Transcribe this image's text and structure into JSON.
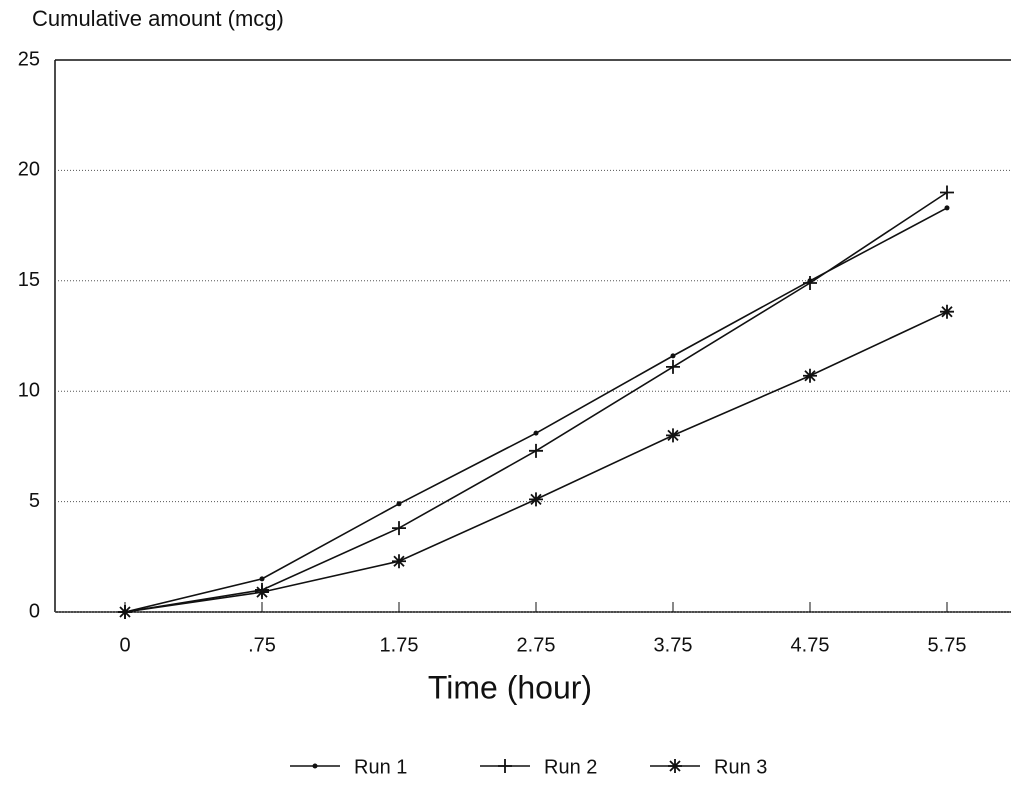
{
  "chart_data": {
    "type": "line",
    "y_label": "Cumulative amount (mcg)",
    "x_label": "Time (hour)",
    "categories": [
      "0",
      ".75",
      "1.75",
      "2.75",
      "3.75",
      "4.75",
      "5.75"
    ],
    "ylim": [
      0,
      25
    ],
    "yticks": [
      0,
      5,
      10,
      15,
      20,
      25
    ],
    "grid": true,
    "legend": "bottom",
    "series": [
      {
        "name": "Run 1",
        "color": "#111111",
        "marker": "dot",
        "values": [
          0,
          1.5,
          4.9,
          8.1,
          11.6,
          15.0,
          18.3
        ]
      },
      {
        "name": "Run 2",
        "color": "#111111",
        "marker": "plus",
        "values": [
          0,
          1.0,
          3.8,
          7.3,
          11.1,
          14.9,
          19.0
        ]
      },
      {
        "name": "Run 3",
        "color": "#111111",
        "marker": "star",
        "values": [
          0,
          0.9,
          2.3,
          5.1,
          8.0,
          10.7,
          13.6
        ]
      }
    ]
  }
}
